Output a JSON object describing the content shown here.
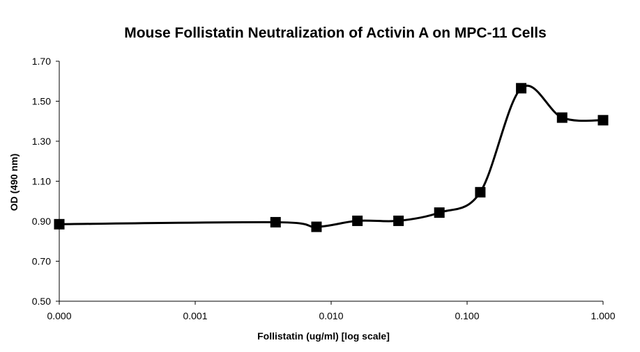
{
  "chart_data": {
    "type": "line",
    "title": "Mouse Follistatin Neutralization of Activin A on MPC-11 Cells",
    "xlabel": "Follistatin (ug/ml) [log scale]",
    "ylabel": "OD (490 nm)",
    "x_scale": "log",
    "xlim": [
      0.0001,
      1.0
    ],
    "ylim": [
      0.5,
      1.7
    ],
    "x_ticks": [
      "0.000",
      "0.001",
      "0.010",
      "0.100",
      "1.000"
    ],
    "y_ticks": [
      "0.50",
      "0.70",
      "0.90",
      "1.10",
      "1.30",
      "1.50",
      "1.70"
    ],
    "grid": false,
    "marker": "square",
    "series": [
      {
        "x": [
          0.0001,
          0.0039,
          0.0078,
          0.0156,
          0.0313,
          0.0625,
          0.125,
          0.25,
          0.5,
          1.0
        ],
        "y": [
          0.885,
          0.895,
          0.872,
          0.902,
          0.902,
          0.943,
          1.045,
          1.565,
          1.418,
          1.405
        ],
        "color": "#000000"
      }
    ]
  }
}
